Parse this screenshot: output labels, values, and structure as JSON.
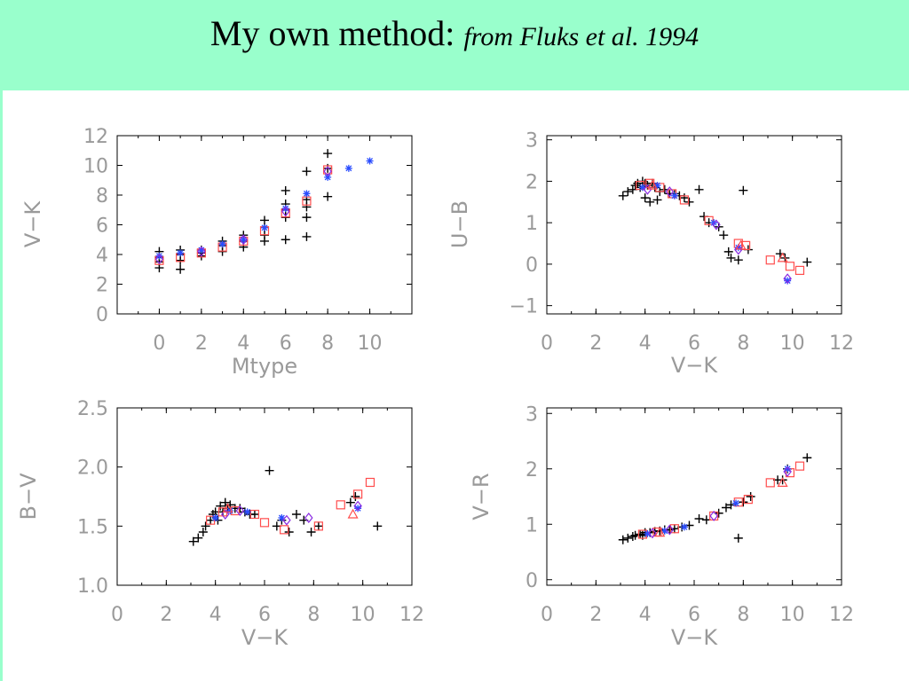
{
  "slide": {
    "title_main": "My own method:",
    "title_sub": "from Fluks et al. 1994",
    "header_color": "#99ffcc"
  },
  "colors": {
    "axis": "#000000",
    "text": "#9a9a9a",
    "black_plus": "#000000",
    "red_square": "#ff4d4d",
    "blue_star": "#2a4dff",
    "purple_diamond": "#8a2be2",
    "red_triangle": "#ff4d4d"
  },
  "chart_data": [
    {
      "type": "scatter",
      "xlabel": "Mtype",
      "ylabel": "V−K",
      "xlim": [
        -2,
        12
      ],
      "ylim": [
        0,
        12
      ],
      "xticks": [
        0,
        2,
        4,
        6,
        8,
        10
      ],
      "yticks": [
        0,
        2,
        4,
        6,
        8,
        10,
        12
      ],
      "series": [
        {
          "marker": "plus",
          "color": "#000000",
          "points": [
            [
              0,
              3.1
            ],
            [
              0,
              3.5
            ],
            [
              0,
              3.8
            ],
            [
              0,
              4.2
            ],
            [
              1,
              3.0
            ],
            [
              1,
              3.6
            ],
            [
              1,
              4.0
            ],
            [
              1,
              4.3
            ],
            [
              2,
              3.9
            ],
            [
              2,
              4.1
            ],
            [
              2,
              4.3
            ],
            [
              3,
              4.2
            ],
            [
              3,
              4.6
            ],
            [
              3,
              4.9
            ],
            [
              4,
              4.5
            ],
            [
              4,
              4.9
            ],
            [
              4,
              5.3
            ],
            [
              5,
              4.9
            ],
            [
              5,
              5.3
            ],
            [
              5,
              5.8
            ],
            [
              5,
              6.3
            ],
            [
              6,
              5.0
            ],
            [
              6,
              6.5
            ],
            [
              6,
              7.0
            ],
            [
              6,
              7.4
            ],
            [
              6,
              8.3
            ],
            [
              7,
              5.2
            ],
            [
              7,
              6.5
            ],
            [
              7,
              7.2
            ],
            [
              7,
              7.7
            ],
            [
              7,
              9.6
            ],
            [
              8,
              7.9
            ],
            [
              8,
              9.8
            ],
            [
              8,
              10.8
            ]
          ]
        },
        {
          "marker": "square",
          "color": "#ff4d4d",
          "points": [
            [
              0,
              3.6
            ],
            [
              1,
              3.8
            ],
            [
              2,
              4.1
            ],
            [
              3,
              4.5
            ],
            [
              4,
              4.9
            ],
            [
              5,
              5.6
            ],
            [
              6,
              6.8
            ],
            [
              7,
              7.6
            ],
            [
              8,
              9.7
            ]
          ]
        },
        {
          "marker": "star",
          "color": "#2a4dff",
          "points": [
            [
              0,
              3.9
            ],
            [
              1,
              4.1
            ],
            [
              2,
              4.3
            ],
            [
              3,
              4.7
            ],
            [
              4,
              5.0
            ],
            [
              5,
              5.8
            ],
            [
              6,
              7.1
            ],
            [
              7,
              8.1
            ],
            [
              8,
              9.2
            ],
            [
              9,
              9.8
            ],
            [
              10,
              10.3
            ]
          ]
        },
        {
          "marker": "diamond",
          "color": "#8a2be2",
          "points": [
            [
              0,
              3.7
            ],
            [
              2,
              4.2
            ],
            [
              4,
              5.0
            ],
            [
              6,
              6.9
            ],
            [
              8,
              9.6
            ]
          ]
        }
      ]
    },
    {
      "type": "scatter",
      "xlabel": "V−K",
      "ylabel": "U−B",
      "xlim": [
        0,
        12
      ],
      "ylim": [
        -1.2,
        3.1
      ],
      "xticks": [
        0,
        2,
        4,
        6,
        8,
        10,
        12
      ],
      "yticks": [
        -1,
        0,
        1,
        2,
        3
      ],
      "yticklabels": [
        "−1",
        "0",
        "1",
        "2",
        "3"
      ],
      "series": [
        {
          "marker": "plus",
          "color": "#000000",
          "points": [
            [
              3.1,
              1.65
            ],
            [
              3.3,
              1.75
            ],
            [
              3.5,
              1.8
            ],
            [
              3.6,
              1.9
            ],
            [
              3.7,
              1.95
            ],
            [
              3.8,
              1.85
            ],
            [
              3.9,
              2.0
            ],
            [
              4.0,
              1.95
            ],
            [
              4.0,
              1.6
            ],
            [
              4.1,
              1.9
            ],
            [
              4.2,
              1.5
            ],
            [
              4.3,
              1.95
            ],
            [
              4.4,
              1.85
            ],
            [
              4.5,
              1.55
            ],
            [
              4.6,
              1.75
            ],
            [
              4.8,
              1.8
            ],
            [
              5.0,
              1.7
            ],
            [
              5.2,
              1.7
            ],
            [
              5.4,
              1.65
            ],
            [
              5.6,
              1.6
            ],
            [
              5.8,
              1.5
            ],
            [
              6.2,
              1.8
            ],
            [
              6.4,
              1.15
            ],
            [
              6.6,
              1.0
            ],
            [
              7.0,
              0.9
            ],
            [
              7.2,
              0.7
            ],
            [
              7.4,
              0.3
            ],
            [
              7.5,
              0.15
            ],
            [
              7.8,
              0.1
            ],
            [
              8.0,
              1.78
            ],
            [
              8.2,
              0.35
            ],
            [
              9.5,
              0.25
            ],
            [
              9.7,
              0.15
            ],
            [
              10.6,
              0.05
            ]
          ]
        },
        {
          "marker": "square",
          "color": "#ff4d4d",
          "points": [
            [
              3.8,
              1.9
            ],
            [
              4.2,
              1.95
            ],
            [
              4.6,
              1.85
            ],
            [
              5.1,
              1.7
            ],
            [
              5.6,
              1.55
            ],
            [
              6.6,
              1.05
            ],
            [
              7.8,
              0.5
            ],
            [
              8.1,
              0.45
            ],
            [
              9.1,
              0.1
            ],
            [
              9.9,
              -0.05
            ],
            [
              10.3,
              -0.15
            ]
          ]
        },
        {
          "marker": "star",
          "color": "#2a4dff",
          "points": [
            [
              3.9,
              1.85
            ],
            [
              4.5,
              1.9
            ],
            [
              5.2,
              1.65
            ],
            [
              6.8,
              1.0
            ],
            [
              7.8,
              0.4
            ],
            [
              9.8,
              -0.4
            ]
          ]
        },
        {
          "marker": "diamond",
          "color": "#8a2be2",
          "points": [
            [
              4.1,
              1.8
            ],
            [
              5.0,
              1.75
            ],
            [
              6.9,
              0.95
            ],
            [
              7.8,
              0.35
            ],
            [
              9.8,
              -0.35
            ]
          ]
        },
        {
          "marker": "triangle",
          "color": "#ff4d4d",
          "points": [
            [
              4.3,
              1.9
            ],
            [
              7.9,
              0.45
            ],
            [
              9.6,
              0.15
            ]
          ]
        }
      ]
    },
    {
      "type": "scatter",
      "xlabel": "V−K",
      "ylabel": "B−V",
      "xlim": [
        0,
        12
      ],
      "ylim": [
        1.0,
        2.5
      ],
      "xticks": [
        0,
        2,
        4,
        6,
        8,
        10,
        12
      ],
      "yticks": [
        1.0,
        1.5,
        2.0,
        2.5
      ],
      "yticklabels": [
        "1.0",
        "1.5",
        "2.0",
        "2.5"
      ],
      "series": [
        {
          "marker": "plus",
          "color": "#000000",
          "points": [
            [
              3.1,
              1.37
            ],
            [
              3.3,
              1.4
            ],
            [
              3.5,
              1.45
            ],
            [
              3.6,
              1.5
            ],
            [
              3.8,
              1.55
            ],
            [
              3.9,
              1.6
            ],
            [
              4.0,
              1.62
            ],
            [
              4.1,
              1.55
            ],
            [
              4.2,
              1.67
            ],
            [
              4.3,
              1.62
            ],
            [
              4.4,
              1.7
            ],
            [
              4.5,
              1.65
            ],
            [
              4.6,
              1.68
            ],
            [
              4.8,
              1.65
            ],
            [
              5.0,
              1.65
            ],
            [
              5.2,
              1.62
            ],
            [
              5.4,
              1.6
            ],
            [
              5.6,
              1.6
            ],
            [
              6.2,
              1.97
            ],
            [
              6.5,
              1.5
            ],
            [
              6.7,
              1.55
            ],
            [
              7.0,
              1.45
            ],
            [
              7.3,
              1.6
            ],
            [
              7.6,
              1.55
            ],
            [
              7.9,
              1.45
            ],
            [
              8.2,
              1.5
            ],
            [
              9.5,
              1.7
            ],
            [
              9.7,
              1.75
            ],
            [
              10.6,
              1.5
            ]
          ]
        },
        {
          "marker": "square",
          "color": "#ff4d4d",
          "points": [
            [
              3.8,
              1.55
            ],
            [
              4.3,
              1.62
            ],
            [
              4.8,
              1.63
            ],
            [
              5.6,
              1.6
            ],
            [
              6.0,
              1.53
            ],
            [
              6.8,
              1.47
            ],
            [
              8.2,
              1.5
            ],
            [
              9.1,
              1.68
            ],
            [
              9.8,
              1.77
            ],
            [
              10.3,
              1.87
            ]
          ]
        },
        {
          "marker": "star",
          "color": "#2a4dff",
          "points": [
            [
              4.0,
              1.57
            ],
            [
              4.6,
              1.63
            ],
            [
              5.3,
              1.62
            ],
            [
              6.7,
              1.57
            ],
            [
              9.8,
              1.65
            ]
          ]
        },
        {
          "marker": "diamond",
          "color": "#8a2be2",
          "points": [
            [
              4.4,
              1.6
            ],
            [
              5.0,
              1.63
            ],
            [
              6.9,
              1.55
            ],
            [
              7.8,
              1.57
            ],
            [
              9.8,
              1.67
            ]
          ]
        },
        {
          "marker": "triangle",
          "color": "#ff4d4d",
          "points": [
            [
              4.5,
              1.65
            ],
            [
              9.6,
              1.6
            ]
          ]
        }
      ]
    },
    {
      "type": "scatter",
      "xlabel": "V−K",
      "ylabel": "V−R",
      "xlim": [
        0,
        12
      ],
      "ylim": [
        -0.1,
        3.1
      ],
      "xticks": [
        0,
        2,
        4,
        6,
        8,
        10,
        12
      ],
      "yticks": [
        0,
        1,
        2,
        3
      ],
      "yticklabels": [
        "0",
        "1",
        "2",
        "3"
      ],
      "series": [
        {
          "marker": "plus",
          "color": "#000000",
          "points": [
            [
              3.1,
              0.72
            ],
            [
              3.3,
              0.75
            ],
            [
              3.5,
              0.78
            ],
            [
              3.6,
              0.8
            ],
            [
              3.8,
              0.82
            ],
            [
              3.9,
              0.8
            ],
            [
              4.0,
              0.85
            ],
            [
              4.2,
              0.85
            ],
            [
              4.4,
              0.87
            ],
            [
              4.6,
              0.88
            ],
            [
              4.8,
              0.9
            ],
            [
              5.0,
              0.9
            ],
            [
              5.2,
              0.92
            ],
            [
              5.5,
              0.95
            ],
            [
              5.8,
              0.98
            ],
            [
              6.2,
              1.1
            ],
            [
              6.5,
              1.08
            ],
            [
              7.0,
              1.2
            ],
            [
              7.3,
              1.3
            ],
            [
              7.5,
              1.35
            ],
            [
              7.8,
              0.75
            ],
            [
              8.0,
              1.4
            ],
            [
              8.3,
              1.5
            ],
            [
              9.4,
              1.8
            ],
            [
              9.6,
              1.8
            ],
            [
              9.8,
              2.0
            ],
            [
              10.6,
              2.2
            ]
          ]
        },
        {
          "marker": "square",
          "color": "#ff4d4d",
          "points": [
            [
              3.9,
              0.82
            ],
            [
              4.5,
              0.86
            ],
            [
              5.2,
              0.92
            ],
            [
              6.8,
              1.15
            ],
            [
              7.8,
              1.4
            ],
            [
              8.2,
              1.45
            ],
            [
              9.1,
              1.75
            ],
            [
              9.9,
              1.93
            ],
            [
              10.3,
              2.05
            ]
          ]
        },
        {
          "marker": "star",
          "color": "#2a4dff",
          "points": [
            [
              4.1,
              0.83
            ],
            [
              4.8,
              0.88
            ],
            [
              5.6,
              0.95
            ],
            [
              7.7,
              1.38
            ],
            [
              9.8,
              2.0
            ]
          ]
        },
        {
          "marker": "diamond",
          "color": "#8a2be2",
          "points": [
            [
              4.3,
              0.84
            ],
            [
              5.0,
              0.9
            ],
            [
              6.8,
              1.15
            ],
            [
              9.8,
              1.95
            ]
          ]
        },
        {
          "marker": "triangle",
          "color": "#ff4d4d",
          "points": [
            [
              4.6,
              0.85
            ],
            [
              9.6,
              1.75
            ]
          ]
        }
      ]
    }
  ]
}
